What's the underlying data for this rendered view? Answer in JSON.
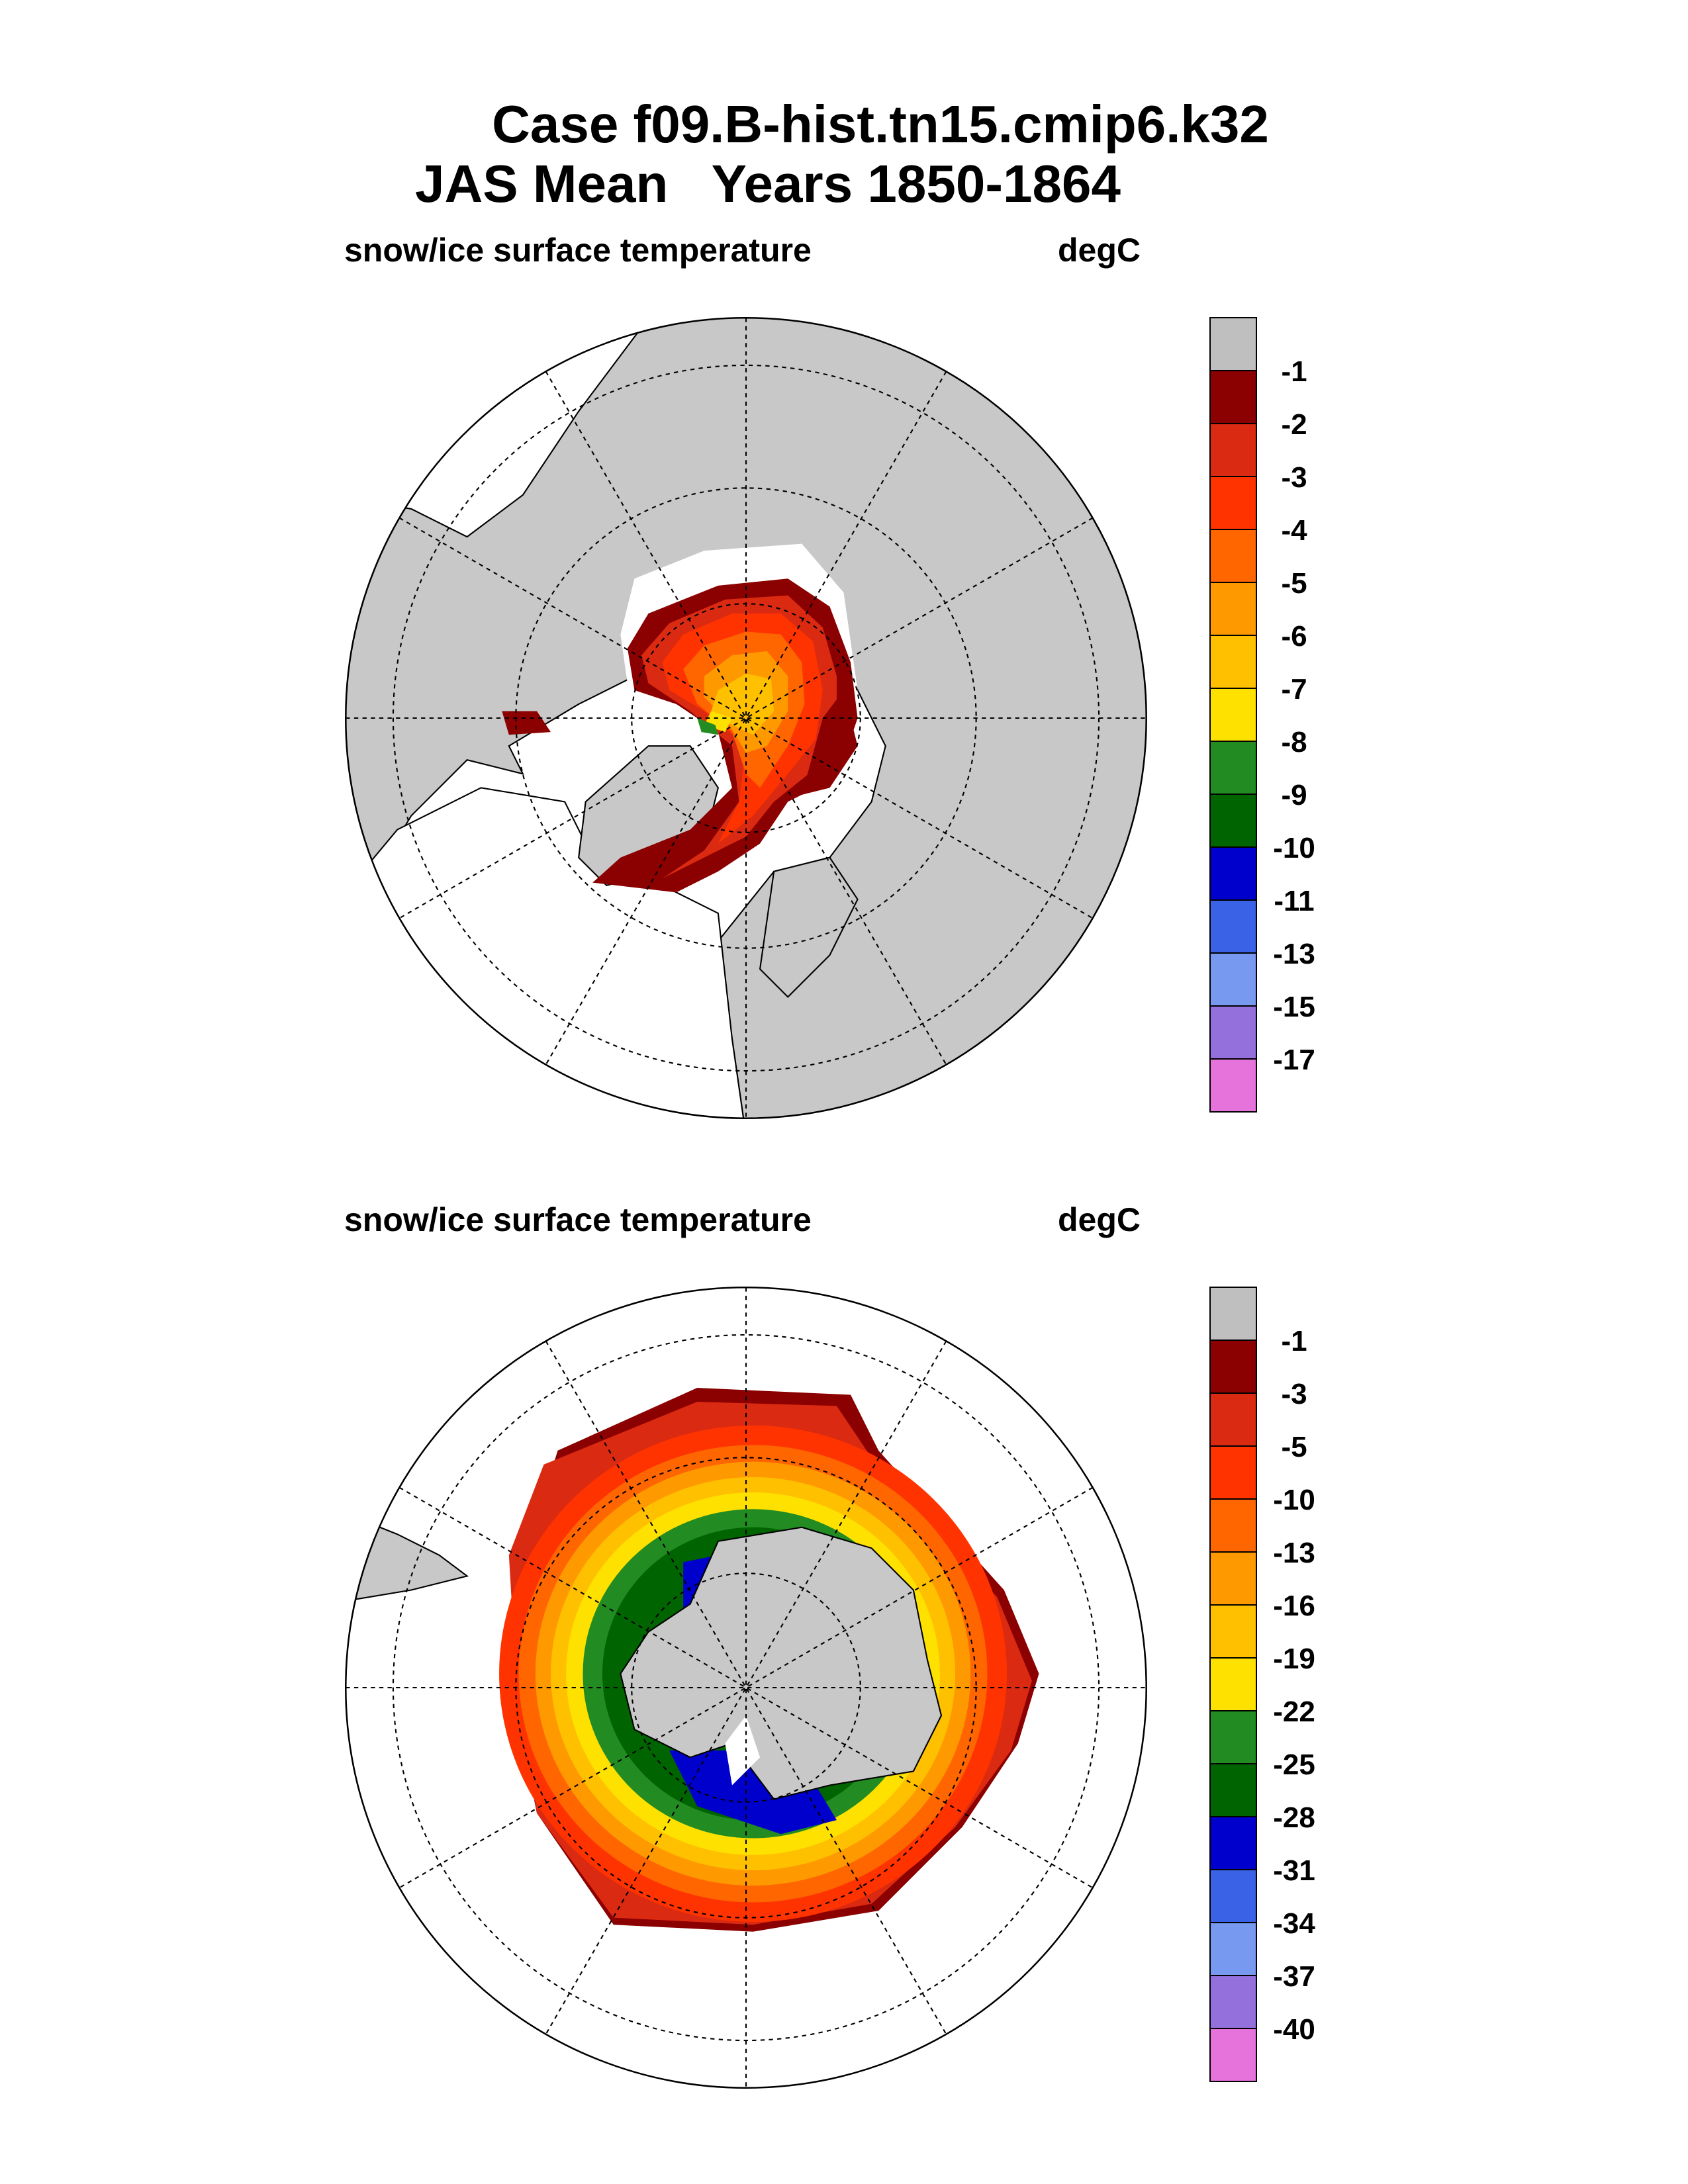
{
  "chart_data": {
    "type": "heatmap",
    "title": [
      "Case f09.B-hist.tn15.cmip6.k32",
      "JAS Mean   Years 1850-1864"
    ],
    "panels": [
      {
        "name": "northern-hemisphere",
        "variable": "snow/ice surface temperature",
        "units": "degC",
        "levels": [
          "-1",
          "-2",
          "-3",
          "-4",
          "-5",
          "-6",
          "-7",
          "-8",
          "-9",
          "-10",
          "-11",
          "-13",
          "-15",
          "-17"
        ],
        "colors": [
          "#bfbfbf",
          "#8b0000",
          "#db2a12",
          "#ff3300",
          "#ff6600",
          "#ff9900",
          "#ffc000",
          "#ffe100",
          "#228b22",
          "#006400",
          "#0000cd",
          "#3a62e6",
          "#7799f0",
          "#9370db",
          "#e673dc"
        ]
      },
      {
        "name": "southern-hemisphere",
        "variable": "snow/ice surface temperature",
        "units": "degC",
        "levels": [
          "-1",
          "-3",
          "-5",
          "-10",
          "-13",
          "-16",
          "-19",
          "-22",
          "-25",
          "-28",
          "-31",
          "-34",
          "-37",
          "-40"
        ],
        "colors": [
          "#bfbfbf",
          "#8b0000",
          "#db2a12",
          "#ff3300",
          "#ff6600",
          "#ff9900",
          "#ffc000",
          "#ffe100",
          "#228b22",
          "#006400",
          "#0000cd",
          "#3a62e6",
          "#7799f0",
          "#9370db",
          "#e673dc"
        ]
      }
    ]
  }
}
